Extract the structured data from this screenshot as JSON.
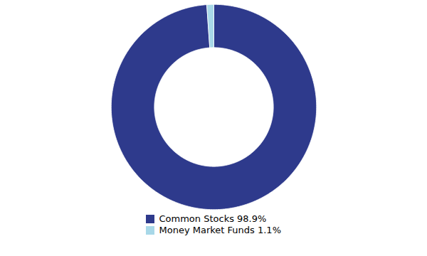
{
  "chart_data": {
    "type": "pie",
    "categories": [
      "Common Stocks 98.9%",
      "Money Market Funds 1.1%"
    ],
    "values": [
      98.9,
      1.1
    ],
    "colors": [
      "#2e3a8c",
      "#a8d8e8"
    ],
    "legend": "bottom"
  }
}
